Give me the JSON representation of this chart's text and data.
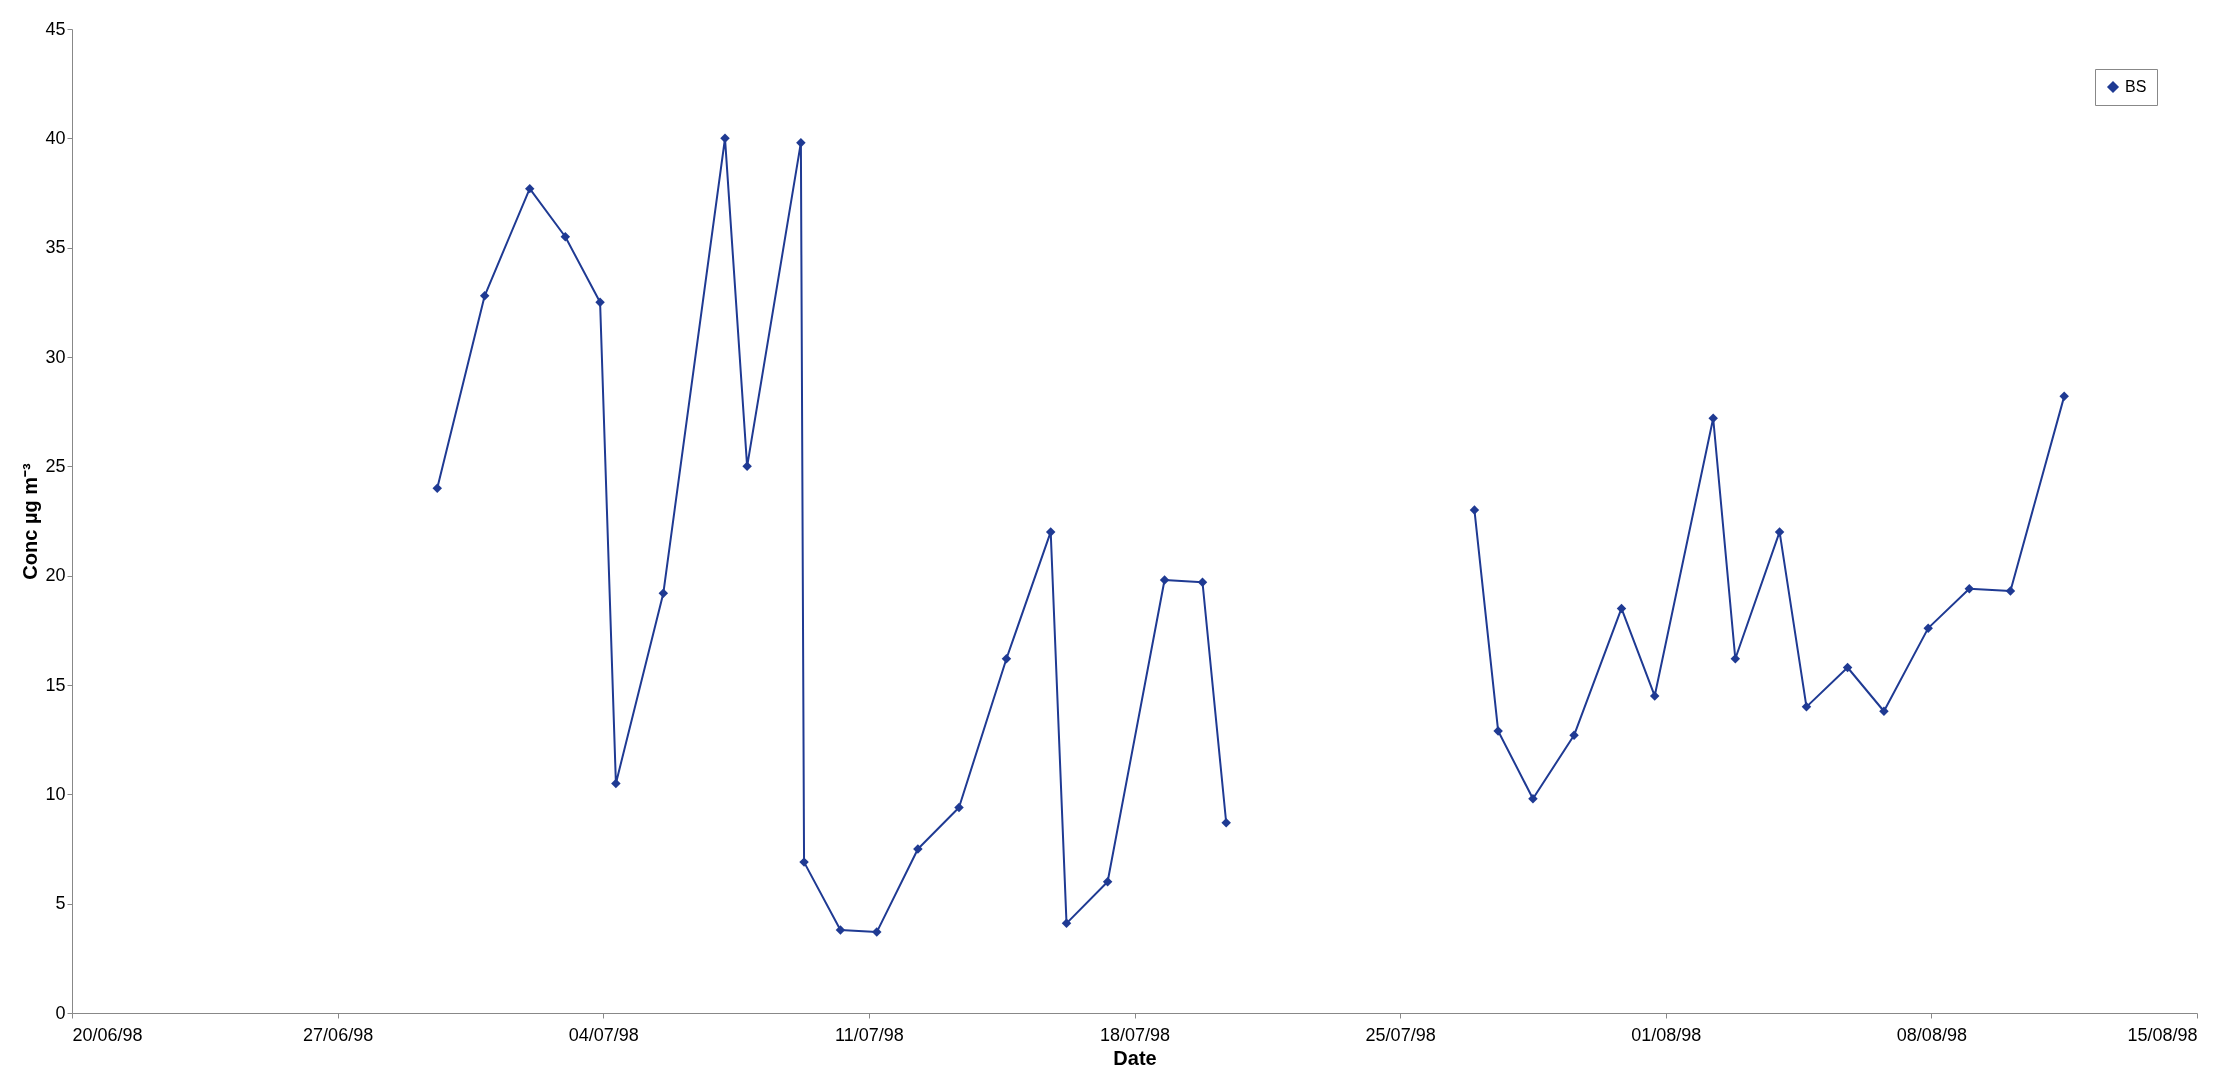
{
  "chart_data": {
    "type": "line",
    "xlabel": "Date",
    "ylabel": "Conc µg m⁻³",
    "x": [
      "1998-06-29T15:00",
      "1998-06-30T21:00",
      "1998-07-02T01:30",
      "1998-07-03T00:00",
      "1998-07-03T22:00",
      "1998-07-04T08:00",
      "1998-07-05T14:00",
      "1998-07-07T05:00",
      "1998-07-07T19:00",
      "1998-07-09T05:00",
      "1998-07-09T07:00",
      "1998-07-10T06:00",
      "1998-07-11T05:00",
      "1998-07-12T07:00",
      "1998-07-13T09:00",
      "1998-07-14T15:00",
      "1998-07-15T19:00",
      "1998-07-16T05:00",
      "1998-07-17T07:00",
      "1998-07-18T19:00",
      "1998-07-19T19:00",
      "1998-07-20T10:00",
      "1998-07-23T12:00",
      "1998-07-26T23:00",
      "1998-07-27T14:00",
      "1998-07-28T12:00",
      "1998-07-29T14:00",
      "1998-07-30T20:00",
      "1998-07-31T17:00",
      "1998-08-02T06:00",
      "1998-08-02T20:00",
      "1998-08-04T00:00",
      "1998-08-04T17:00",
      "1998-08-05T19:00",
      "1998-08-06T18:00",
      "1998-08-07T22:00",
      "1998-08-09T00:00",
      "1998-08-10T02:00",
      "1998-08-11T12:00"
    ],
    "series": [
      {
        "name": "BS",
        "color": "#1f3a93",
        "values": [
          24,
          32.8,
          37.7,
          35.5,
          32.5,
          10.5,
          19.2,
          40,
          25,
          39.8,
          6.9,
          3.8,
          3.7,
          7.5,
          9.4,
          16.2,
          22,
          4.1,
          6,
          19.8,
          19.7,
          8.7,
          null,
          23,
          12.9,
          9.8,
          12.7,
          18.5,
          14.5,
          27.2,
          16.2,
          22,
          14,
          15.8,
          13.8,
          17.6,
          19.4,
          19.3,
          28.2
        ]
      }
    ],
    "xlim": [
      "1998-06-20",
      "1998-08-15"
    ],
    "xticks": [
      {
        "value": "1998-06-20",
        "label": "20/06/98"
      },
      {
        "value": "1998-06-27",
        "label": "27/06/98"
      },
      {
        "value": "1998-07-04",
        "label": "04/07/98"
      },
      {
        "value": "1998-07-11",
        "label": "11/07/98"
      },
      {
        "value": "1998-07-18",
        "label": "18/07/98"
      },
      {
        "value": "1998-07-25",
        "label": "25/07/98"
      },
      {
        "value": "1998-08-01",
        "label": "01/08/98"
      },
      {
        "value": "1998-08-08",
        "label": "08/08/98"
      },
      {
        "value": "1998-08-15",
        "label": "15/08/98"
      }
    ],
    "ylim": [
      0,
      45
    ],
    "yticks": [
      0,
      5,
      10,
      15,
      20,
      25,
      30,
      35,
      40,
      45
    ],
    "grid": false,
    "legend": "top right",
    "marker": "diamond",
    "line_style": "solid"
  }
}
